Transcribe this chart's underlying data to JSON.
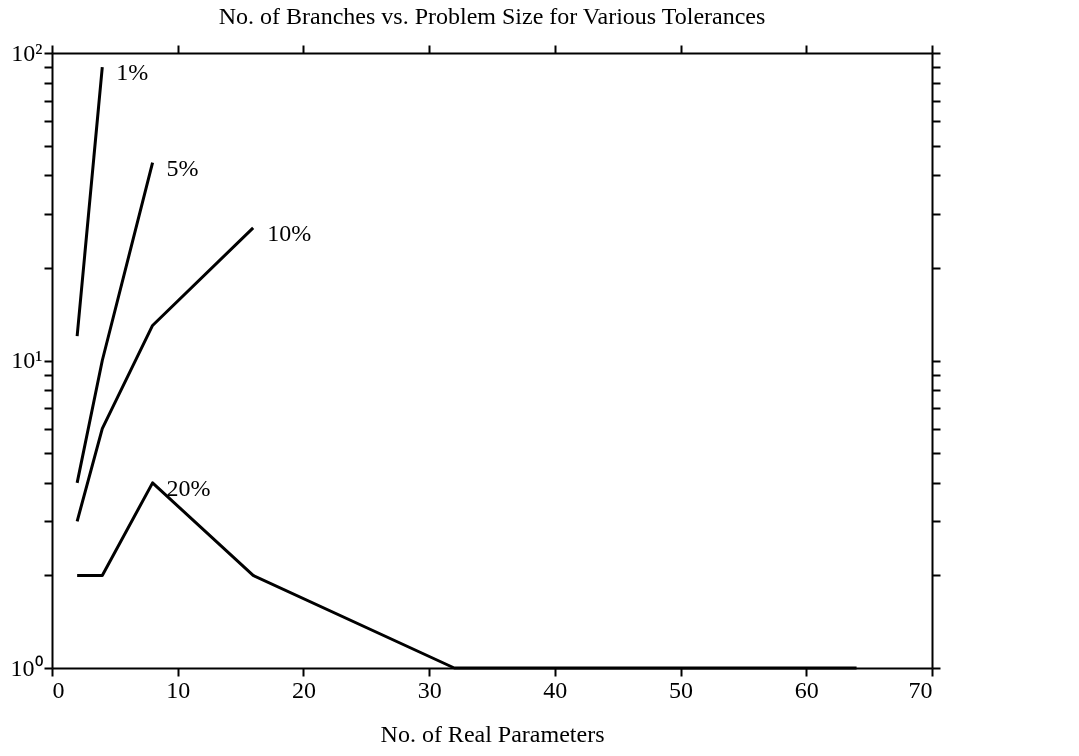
{
  "chart_data": {
    "type": "line",
    "title": "No. of Branches vs. Problem Size for Various Tolerances",
    "xlabel": "No. of Real Parameters",
    "series": [
      {
        "name": "1%",
        "color": "#000000",
        "x": [
          2,
          4
        ],
        "values": [
          12,
          90
        ]
      },
      {
        "name": "5%",
        "color": "#000000",
        "x": [
          2,
          4,
          8
        ],
        "values": [
          4,
          10,
          44
        ]
      },
      {
        "name": "10%",
        "color": "#000000",
        "x": [
          2,
          4,
          8,
          16
        ],
        "values": [
          3,
          6,
          13,
          27
        ]
      },
      {
        "name": "20%",
        "color": "#000000",
        "x": [
          2,
          4,
          8,
          16,
          32,
          64
        ],
        "values": [
          2,
          2,
          4,
          2,
          1,
          1
        ]
      }
    ],
    "log": "y",
    "xlim": [
      0,
      70
    ],
    "xticks": [
      0,
      10,
      20,
      30,
      40,
      50,
      60,
      70
    ],
    "ylim": [
      1,
      100
    ],
    "yticks": [
      {
        "value": 1,
        "label": "10⁰"
      },
      {
        "value": 2,
        "label": null
      },
      {
        "value": 3,
        "label": null
      },
      {
        "value": 4,
        "label": null
      },
      {
        "value": 5,
        "label": null
      },
      {
        "value": 6,
        "label": null
      },
      {
        "value": 7,
        "label": null
      },
      {
        "value": 8,
        "label": null
      },
      {
        "value": 9,
        "label": null
      },
      {
        "value": 10,
        "label": "10¹"
      },
      {
        "value": 20,
        "label": null
      },
      {
        "value": 30,
        "label": null
      },
      {
        "value": 40,
        "label": null
      },
      {
        "value": 50,
        "label": null
      },
      {
        "value": 60,
        "label": null
      },
      {
        "value": 70,
        "label": null
      },
      {
        "value": 80,
        "label": null
      },
      {
        "value": 90,
        "label": null
      },
      {
        "value": 100,
        "label": "10²"
      }
    ],
    "grid": false,
    "legend": false,
    "marker": "none",
    "line_style": "solid"
  }
}
